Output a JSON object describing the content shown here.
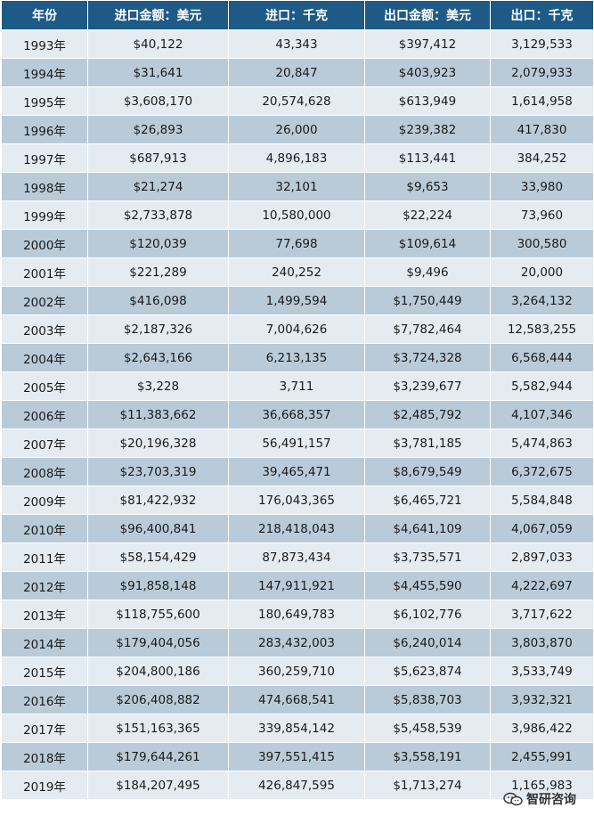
{
  "headers": [
    "年份",
    "进口金额：美元",
    "进口：千克",
    "出口金额：美元",
    "出口：千克"
  ],
  "rows": [
    [
      "1993年",
      "$40,122",
      "43,343",
      "$397,412",
      "3,129,533"
    ],
    [
      "1994年",
      "$31,641",
      "20,847",
      "$403,923",
      "2,079,933"
    ],
    [
      "1995年",
      "$3,608,170",
      "20,574,628",
      "$613,949",
      "1,614,958"
    ],
    [
      "1996年",
      "$26,893",
      "26,000",
      "$239,382",
      "417,830"
    ],
    [
      "1997年",
      "$687,913",
      "4,896,183",
      "$113,441",
      "384,252"
    ],
    [
      "1998年",
      "$21,274",
      "32,101",
      "$9,653",
      "33,980"
    ],
    [
      "1999年",
      "$2,733,878",
      "10,580,000",
      "$22,224",
      "73,960"
    ],
    [
      "2000年",
      "$120,039",
      "77,698",
      "$109,614",
      "300,580"
    ],
    [
      "2001年",
      "$221,289",
      "240,252",
      "$9,496",
      "20,000"
    ],
    [
      "2002年",
      "$416,098",
      "1,499,594",
      "$1,750,449",
      "3,264,132"
    ],
    [
      "2003年",
      "$2,187,326",
      "7,004,626",
      "$7,782,464",
      "12,583,255"
    ],
    [
      "2004年",
      "$2,643,166",
      "6,213,135",
      "$3,724,328",
      "6,568,444"
    ],
    [
      "2005年",
      "$3,228",
      "3,711",
      "$3,239,677",
      "5,582,944"
    ],
    [
      "2006年",
      "$11,383,662",
      "36,668,357",
      "$2,485,792",
      "4,107,346"
    ],
    [
      "2007年",
      "$20,196,328",
      "56,491,157",
      "$3,781,185",
      "5,474,863"
    ],
    [
      "2008年",
      "$23,703,319",
      "39,465,471",
      "$8,679,549",
      "6,372,675"
    ],
    [
      "2009年",
      "$81,422,932",
      "176,043,365",
      "$6,465,721",
      "5,584,848"
    ],
    [
      "2010年",
      "$96,400,841",
      "218,418,043",
      "$4,641,109",
      "4,067,059"
    ],
    [
      "2011年",
      "$58,154,429",
      "87,873,434",
      "$3,735,571",
      "2,897,033"
    ],
    [
      "2012年",
      "$91,858,148",
      "147,911,921",
      "$4,455,590",
      "4,222,697"
    ],
    [
      "2013年",
      "$118,755,600",
      "180,649,783",
      "$6,102,776",
      "3,717,622"
    ],
    [
      "2014年",
      "$179,404,056",
      "283,432,003",
      "$6,240,014",
      "3,803,870"
    ],
    [
      "2015年",
      "$204,800,186",
      "360,259,710",
      "$5,623,874",
      "3,533,749"
    ],
    [
      "2016年",
      "$206,408,882",
      "474,668,541",
      "$5,838,703",
      "3,932,321"
    ],
    [
      "2017年",
      "$151,163,365",
      "339,854,142",
      "$5,458,539",
      "3,986,422"
    ],
    [
      "2018年",
      "$179,644,261",
      "397,551,415",
      "$3,558,191",
      "2,455,991"
    ],
    [
      "2019年",
      "$184,207,495",
      "426,847,595",
      "$1,713,274",
      "1,165,983"
    ]
  ],
  "watermark": {
    "text": "智研咨询",
    "icon": "wechat-icon"
  },
  "colors": {
    "header_bg": "#1e5a86",
    "row_light": "#e4ecf2",
    "row_dark": "#b9cbd9"
  }
}
